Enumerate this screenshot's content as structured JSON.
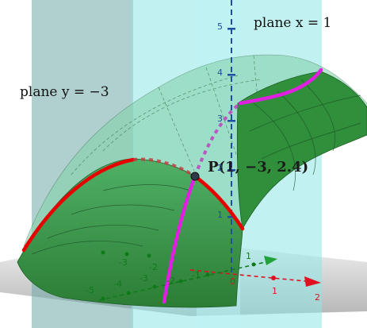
{
  "labels": {
    "plane_x": "plane x = 1",
    "plane_y": "plane y = −3",
    "point": "P(1, −3, 2.4)"
  },
  "axes": {
    "z_ticks": [
      "1",
      "2",
      "3",
      "4",
      "5"
    ],
    "x_ticks": [
      "0",
      "1",
      "2"
    ],
    "y_ticks": [
      "-1",
      "-2",
      "-3",
      "-4",
      "-5"
    ],
    "y_ticks_left": [
      "-1",
      "-2",
      "-3"
    ],
    "pos_y_tick": "1"
  },
  "colors": {
    "surface": "#2f8f3a",
    "surface_light": "#7fd0a8",
    "plane_x": "#8fe6e6",
    "plane_y": "#6faaaa",
    "curve_y": "#e60000",
    "curve_x": "#e020e0",
    "z_axis": "#1f4fa0",
    "x_axis": "#e01020",
    "y_axis": "#0f7a1a"
  }
}
